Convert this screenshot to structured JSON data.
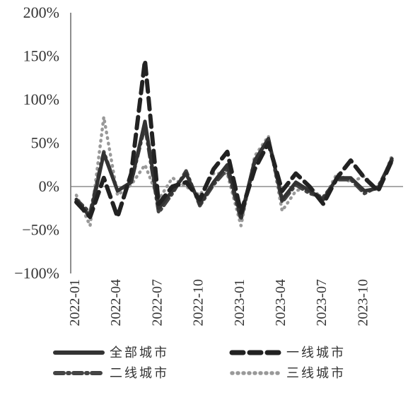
{
  "chart_data": {
    "type": "line",
    "title": "",
    "xlabel": "",
    "ylabel": "",
    "ylim": [
      -100,
      200
    ],
    "y_ticks": [
      -100,
      -50,
      0,
      50,
      100,
      150,
      200
    ],
    "y_tick_labels": [
      "−100%",
      "−50%",
      "0%",
      "50%",
      "100%",
      "150%",
      "200%"
    ],
    "x": [
      "2022-01",
      "2022-02",
      "2022-03",
      "2022-04",
      "2022-05",
      "2022-06",
      "2022-07",
      "2022-08",
      "2022-09",
      "2022-10",
      "2022-11",
      "2022-12",
      "2023-01",
      "2023-02",
      "2023-03",
      "2023-04",
      "2023-05",
      "2023-06",
      "2023-07",
      "2023-08",
      "2023-09",
      "2023-10",
      "2023-11",
      "2023-12"
    ],
    "x_tick_labels": [
      "2022-01",
      "2022-04",
      "2022-07",
      "2022-10",
      "2023-01",
      "2023-04",
      "2023-07",
      "2023-10"
    ],
    "x_tick_indices": [
      0,
      3,
      6,
      9,
      12,
      15,
      18,
      21
    ],
    "zero_line": true,
    "grid": false,
    "legend_position": "bottom",
    "series": [
      {
        "name": "全部城市",
        "color": "#333333",
        "style": "solid",
        "values": [
          -15,
          -35,
          38,
          -5,
          5,
          75,
          -25,
          -5,
          15,
          -20,
          5,
          25,
          -35,
          30,
          55,
          -15,
          5,
          -5,
          -15,
          10,
          10,
          -5,
          -2,
          32
        ]
      },
      {
        "name": "一线城市",
        "color": "#222222",
        "style": "longdash",
        "values": [
          -18,
          -35,
          10,
          -35,
          15,
          145,
          -20,
          0,
          5,
          -15,
          20,
          40,
          -30,
          20,
          50,
          -5,
          15,
          0,
          -20,
          10,
          30,
          10,
          -5,
          30
        ]
      },
      {
        "name": "二线城市",
        "color": "#444444",
        "style": "dashdot",
        "values": [
          -15,
          -30,
          40,
          -5,
          5,
          70,
          -30,
          -8,
          18,
          -22,
          2,
          20,
          -38,
          28,
          55,
          -18,
          2,
          -8,
          -12,
          8,
          8,
          -8,
          0,
          30
        ]
      },
      {
        "name": "三线城市",
        "color": "#999999",
        "style": "dotted",
        "values": [
          -10,
          -45,
          80,
          -10,
          2,
          25,
          -15,
          10,
          0,
          -10,
          15,
          15,
          -45,
          35,
          58,
          -28,
          -5,
          0,
          -15,
          15,
          5,
          12,
          -5,
          35
        ]
      }
    ]
  }
}
